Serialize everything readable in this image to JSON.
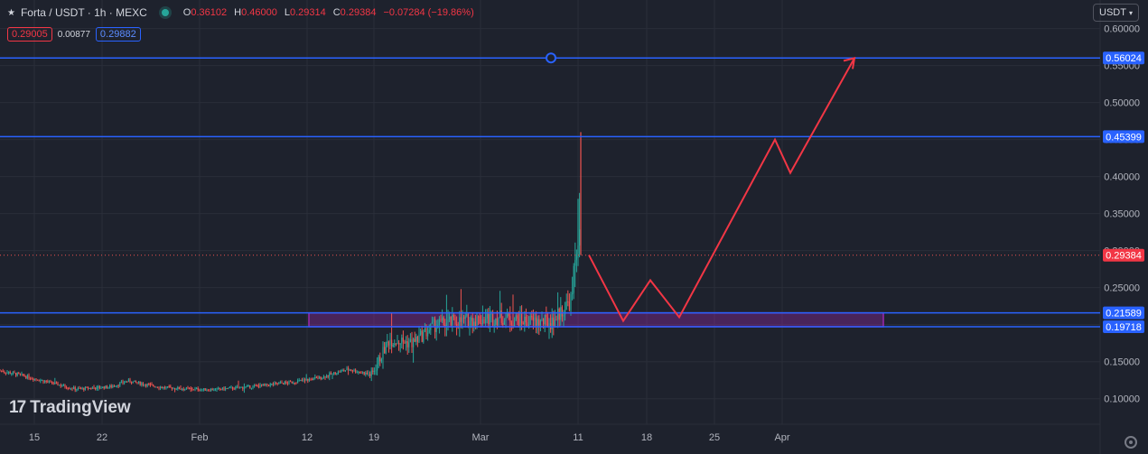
{
  "header": {
    "title": "Forta / USDT · 1h · MEXC",
    "o_label": "O",
    "o_value": "0.36102",
    "h_label": "H",
    "h_value": "0.46000",
    "l_label": "L",
    "l_value": "0.29314",
    "c_label": "C",
    "c_value": "0.29384",
    "change": "−0.07284 (−19.86%)",
    "sell_price": "0.29005",
    "spread": "0.00877",
    "buy_price": "0.29882"
  },
  "currency_button": "USDT",
  "logo_text": "TradingView",
  "colors": {
    "bg": "#1e222d",
    "grid": "#2a2e39",
    "up": "#26a69a",
    "down": "#ef5350",
    "hline": "#2962ff",
    "zone": "#9c27b0",
    "path": "#f23645"
  },
  "chart_data": {
    "type": "candlestick",
    "symbol": "Forta / USDT",
    "timeframe": "1h",
    "exchange": "MEXC",
    "ylim": [
      0.0655,
      0.6385
    ],
    "y_ticks": [
      "0.60000",
      "0.55000",
      "0.50000",
      "0.45000",
      "0.40000",
      "0.35000",
      "0.30000",
      "0.25000",
      "0.20000",
      "0.15000",
      "0.10000"
    ],
    "x_ticks": [
      "15",
      "22",
      "Feb",
      "12",
      "19",
      "Mar",
      "11",
      "18",
      "25",
      "Apr"
    ],
    "horizontal_levels": [
      "0.56024",
      "0.45399",
      "0.21589",
      "0.19718"
    ],
    "current_price": "0.29384",
    "zone": {
      "top": 0.21589,
      "bottom": 0.19718,
      "from_tick": "12",
      "to": "Apr +"
    },
    "price_profile": [
      {
        "x": 0.0,
        "y": 0.138
      },
      {
        "x": 0.04,
        "y": 0.131
      },
      {
        "x": 0.09,
        "y": 0.121
      },
      {
        "x": 0.13,
        "y": 0.113
      },
      {
        "x": 0.19,
        "y": 0.116
      },
      {
        "x": 0.22,
        "y": 0.124
      },
      {
        "x": 0.28,
        "y": 0.115
      },
      {
        "x": 0.36,
        "y": 0.112
      },
      {
        "x": 0.43,
        "y": 0.116
      },
      {
        "x": 0.5,
        "y": 0.122
      },
      {
        "x": 0.55,
        "y": 0.128
      },
      {
        "x": 0.6,
        "y": 0.14
      },
      {
        "x": 0.64,
        "y": 0.132
      },
      {
        "x": 0.67,
        "y": 0.18
      },
      {
        "x": 0.71,
        "y": 0.175
      },
      {
        "x": 0.75,
        "y": 0.2
      },
      {
        "x": 0.8,
        "y": 0.205
      },
      {
        "x": 0.86,
        "y": 0.21
      },
      {
        "x": 0.9,
        "y": 0.205
      },
      {
        "x": 0.95,
        "y": 0.203
      },
      {
        "x": 0.985,
        "y": 0.235
      },
      {
        "x": 0.995,
        "y": 0.33
      },
      {
        "x": 1.0,
        "y": 0.294
      }
    ],
    "projection_path_y": [
      0.294,
      0.205,
      0.26,
      0.21,
      0.45,
      0.405,
      0.56
    ]
  }
}
